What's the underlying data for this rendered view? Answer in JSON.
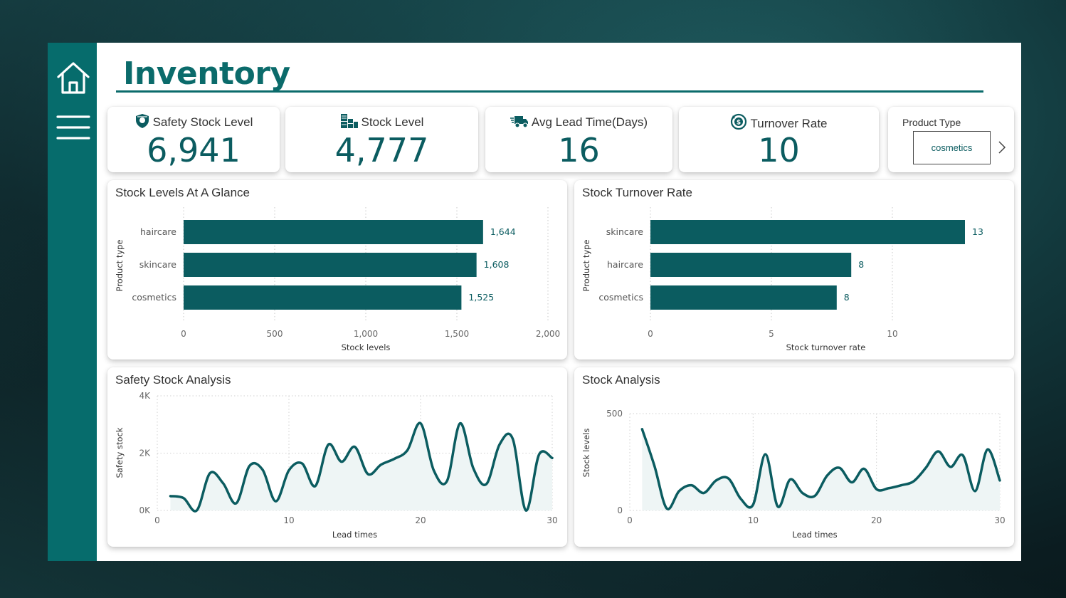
{
  "page": {
    "title": "Inventory"
  },
  "nav": {
    "home_icon": "home-icon",
    "menu_icon": "hamburger-menu-icon"
  },
  "kpis": [
    {
      "label": "Safety Stock Level",
      "value": "6,941",
      "icon": "shield-icon"
    },
    {
      "label": "Stock Level",
      "value": "4,777",
      "icon": "warehouse-icon"
    },
    {
      "label": "Avg Lead Time(Days)",
      "value": "16",
      "icon": "delivery-truck-icon"
    },
    {
      "label": "Turnover Rate",
      "value": "10",
      "icon": "coin-cycle-icon"
    }
  ],
  "slicer": {
    "label": "Product Type",
    "selected": "cosmetics",
    "next_icon": "chevron-right-icon"
  },
  "colors": {
    "accent": "#0b5c60",
    "sidebar": "#066c6c",
    "bar": "#0b5c60",
    "area": "#eef5f5"
  },
  "chart_data": [
    {
      "type": "bar",
      "orientation": "horizontal",
      "title": "Stock Levels At A Glance",
      "categories": [
        "haircare",
        "skincare",
        "cosmetics"
      ],
      "values": [
        1644,
        1608,
        1525
      ],
      "value_labels": [
        "1,644",
        "1,608",
        "1,525"
      ],
      "xlabel": "Stock levels",
      "ylabel": "Product type",
      "xlim": [
        0,
        2000
      ],
      "x_ticks": [
        0,
        500,
        1000,
        1500,
        2000
      ],
      "x_tick_labels": [
        "0",
        "500",
        "1,000",
        "1,500",
        "2,000"
      ],
      "grid": true
    },
    {
      "type": "bar",
      "orientation": "horizontal",
      "title": "Stock Turnover Rate",
      "categories": [
        "skincare",
        "haircare",
        "cosmetics"
      ],
      "values": [
        13,
        8.3,
        7.7
      ],
      "value_labels": [
        "13",
        "8",
        "8"
      ],
      "xlabel": "Stock turnover rate",
      "ylabel": "Product type",
      "xlim": [
        0,
        14.5
      ],
      "x_ticks": [
        0,
        5,
        10
      ],
      "x_tick_labels": [
        "0",
        "5",
        "10"
      ],
      "grid": true
    },
    {
      "type": "area",
      "title": "Safety Stock Analysis",
      "xlabel": "Lead times",
      "ylabel": "Safety stock",
      "xlim": [
        0,
        30
      ],
      "ylim": [
        0,
        4000
      ],
      "x_ticks": [
        0,
        10,
        20,
        30
      ],
      "x_tick_labels": [
        "0",
        "10",
        "20",
        "30"
      ],
      "y_ticks": [
        0,
        2000,
        4000
      ],
      "y_tick_labels": [
        "0K",
        "2K",
        "4K"
      ],
      "grid": true,
      "x": [
        1,
        2,
        3,
        4,
        5,
        6,
        7,
        8,
        9,
        10,
        11,
        12,
        13,
        14,
        15,
        16,
        17,
        18,
        19,
        20,
        21,
        22,
        23,
        24,
        25,
        26,
        27,
        28,
        29,
        30
      ],
      "y": [
        500,
        430,
        0,
        1300,
        950,
        250,
        1550,
        1420,
        320,
        1400,
        1640,
        850,
        2300,
        1700,
        2220,
        1270,
        1600,
        1800,
        2100,
        3040,
        1400,
        1020,
        3040,
        1480,
        920,
        2300,
        2500,
        0,
        1950,
        1830
      ]
    },
    {
      "type": "area",
      "title": "Stock Analysis",
      "xlabel": "Lead times",
      "ylabel": "Stock levels",
      "xlim": [
        0,
        30
      ],
      "ylim": [
        0,
        500
      ],
      "x_ticks": [
        0,
        10,
        20,
        30
      ],
      "x_tick_labels": [
        "0",
        "10",
        "20",
        "30"
      ],
      "y_ticks": [
        0,
        500
      ],
      "y_tick_labels": [
        "0",
        "500"
      ],
      "grid": true,
      "x": [
        1,
        2,
        3,
        4,
        5,
        6,
        7,
        8,
        9,
        10,
        11,
        12,
        13,
        14,
        15,
        16,
        17,
        18,
        19,
        20,
        21,
        22,
        23,
        24,
        25,
        26,
        27,
        28,
        29,
        30
      ],
      "y": [
        420,
        230,
        10,
        100,
        130,
        90,
        155,
        165,
        60,
        30,
        290,
        20,
        160,
        90,
        75,
        180,
        220,
        145,
        215,
        110,
        115,
        130,
        150,
        220,
        305,
        225,
        285,
        100,
        315,
        155
      ]
    }
  ]
}
